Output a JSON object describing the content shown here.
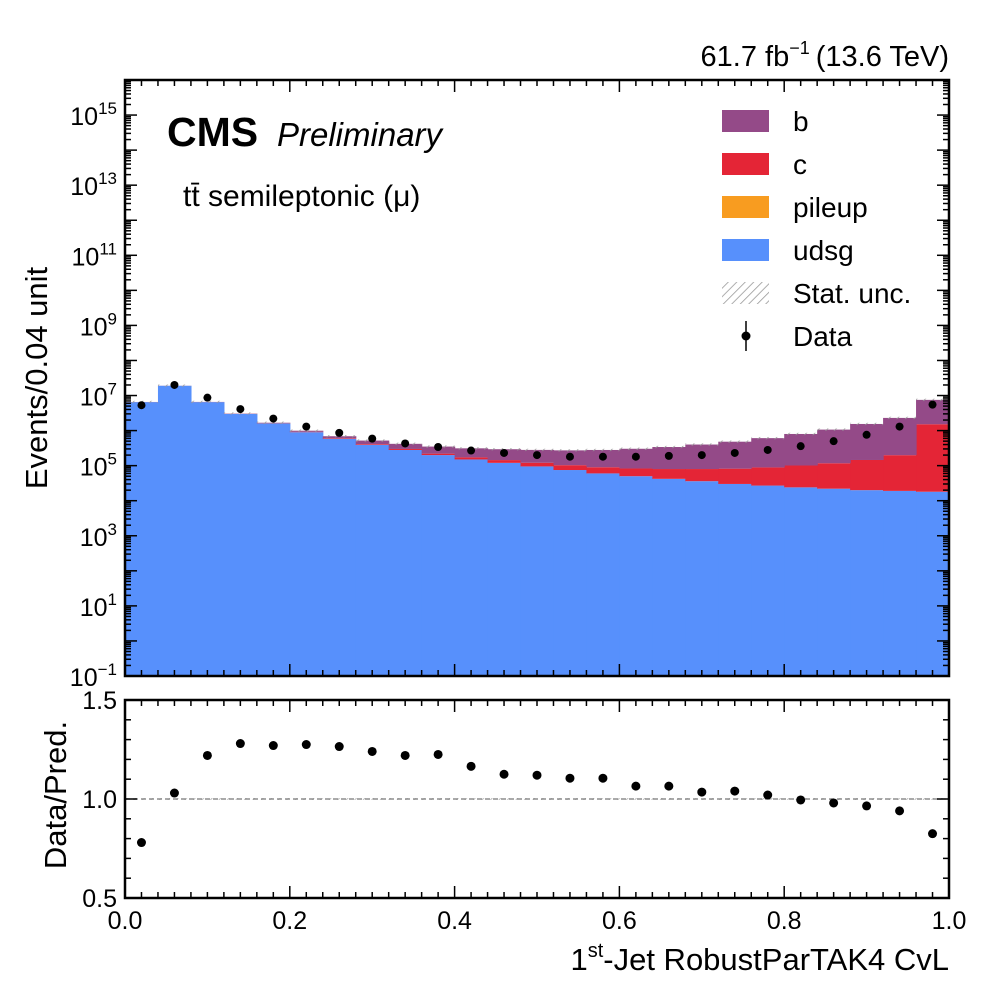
{
  "header": {
    "lumi_value": "61.7 fb",
    "lumi_exponent": "−1",
    "energy": "(13.6 TeV)",
    "experiment": "CMS",
    "status": "Preliminary",
    "channel": "tt̄ semileptonic (μ)"
  },
  "colors": {
    "b": "#944a88",
    "c": "#e42536",
    "pileup": "#f89c20",
    "udsg": "#5790fc",
    "data": "#000000",
    "stat_unc": "#9a9a9a",
    "ref_line": "#777777"
  },
  "legend": {
    "entries": [
      {
        "label": "b",
        "kind": "fill",
        "color_key": "b"
      },
      {
        "label": "c",
        "kind": "fill",
        "color_key": "c"
      },
      {
        "label": "pileup",
        "kind": "fill",
        "color_key": "pileup"
      },
      {
        "label": "udsg",
        "kind": "fill",
        "color_key": "udsg"
      },
      {
        "label": "Stat. unc.",
        "kind": "hatch",
        "color_key": "stat_unc"
      },
      {
        "label": "Data",
        "kind": "marker",
        "color_key": "data"
      }
    ]
  },
  "chart_data": {
    "type": "bar",
    "stacked": true,
    "bin_width": 0.04,
    "xlim": [
      0,
      1.0
    ],
    "xlabel_main": "-Jet RobustParTAK4 CvL",
    "xlabel_prefix": "1",
    "xlabel_sup": "st",
    "top_panel": {
      "ylabel": "Events/0.04 unit",
      "yscale": "log",
      "ylim": [
        0.1,
        1e+16
      ],
      "y_tick_labels": [
        {
          "base": "10",
          "exp": "−1",
          "value": 0.1
        },
        {
          "base": "10",
          "exp": "1",
          "value": 10
        },
        {
          "base": "10",
          "exp": "3",
          "value": 1000
        },
        {
          "base": "10",
          "exp": "5",
          "value": 100000
        },
        {
          "base": "10",
          "exp": "7",
          "value": 10000000
        },
        {
          "base": "10",
          "exp": "9",
          "value": 1000000000
        },
        {
          "base": "10",
          "exp": "11",
          "value": 100000000000
        },
        {
          "base": "10",
          "exp": "13",
          "value": 10000000000000
        },
        {
          "base": "10",
          "exp": "15",
          "value": 1000000000000000
        }
      ],
      "series": [
        {
          "name": "udsg",
          "color_key": "udsg",
          "values": [
            6500000.0,
            19000000.0,
            6500000.0,
            3000000.0,
            1600000.0,
            900000.0,
            580000.0,
            390000.0,
            280000.0,
            200000.0,
            150000.0,
            120000.0,
            95000.0,
            75000.0,
            60000.0,
            50000.0,
            42000.0,
            36000.0,
            30000.0,
            27000.0,
            24000.0,
            22000.0,
            20000.0,
            19000.0,
            18000.0
          ]
        },
        {
          "name": "pileup",
          "color_key": "pileup",
          "values": [
            2000.0,
            3000.0,
            1500.0,
            800.0,
            500.0,
            300.0,
            200.0,
            150.0,
            120.0,
            100.0,
            90.0,
            80.0,
            70.0,
            60.0,
            55.0,
            50.0,
            45.0,
            42.0,
            40.0,
            38.0,
            36.0,
            35.0,
            34.0,
            33.0,
            32.0
          ]
        },
        {
          "name": "c",
          "color_key": "c",
          "values": [
            30000.0,
            50000.0,
            40000.0,
            30000.0,
            25000.0,
            22000.0,
            20000.0,
            19000.0,
            19000.0,
            20000.0,
            22000.0,
            24000.0,
            26000.0,
            28000.0,
            30000.0,
            33000.0,
            38000.0,
            44000.0,
            52000.0,
            62000.0,
            77000.0,
            95000.0,
            125000.0,
            180000.0,
            1500000.0
          ]
        },
        {
          "name": "b",
          "color_key": "b",
          "values": [
            20000.0,
            30000.0,
            30000.0,
            40000.0,
            50000.0,
            70000.0,
            90000.0,
            110000.0,
            120000.0,
            130000.0,
            140000.0,
            150000.0,
            160000.0,
            170000.0,
            190000.0,
            220000.0,
            260000.0,
            320000.0,
            400000.0,
            520000.0,
            700000.0,
            950000.0,
            1400000.0,
            2100000.0,
            6000000.0
          ]
        }
      ],
      "data": {
        "name": "Data",
        "x": [
          0.02,
          0.06,
          0.1,
          0.14,
          0.18,
          0.22,
          0.26,
          0.3,
          0.34,
          0.38,
          0.42,
          0.46,
          0.5,
          0.54,
          0.58,
          0.62,
          0.66,
          0.7,
          0.74,
          0.78,
          0.82,
          0.86,
          0.9,
          0.94,
          0.98
        ],
        "y": [
          5300000.0,
          20000000.0,
          8700000.0,
          4100000.0,
          2200000.0,
          1300000.0,
          860000.0,
          590000.0,
          430000.0,
          340000.0,
          270000.0,
          230000.0,
          200000.0,
          180000.0,
          180000.0,
          180000.0,
          190000.0,
          200000.0,
          230000.0,
          280000.0,
          360000.0,
          500000.0,
          760000.0,
          1300000.0,
          5500000.0
        ]
      }
    },
    "ratio_panel": {
      "ylabel": "Data/Pred.",
      "ylim": [
        0.5,
        1.5
      ],
      "y_tick_labels": [
        "0.5",
        "1.0",
        "1.5"
      ],
      "y_tick_values": [
        0.5,
        1.0,
        1.5
      ],
      "x_tick_labels": [
        "0.0",
        "0.2",
        "0.4",
        "0.6",
        "0.8",
        "1.0"
      ],
      "x_tick_values": [
        0.0,
        0.2,
        0.4,
        0.6,
        0.8,
        1.0
      ],
      "reference": 1.0,
      "x": [
        0.02,
        0.06,
        0.1,
        0.14,
        0.18,
        0.22,
        0.26,
        0.3,
        0.34,
        0.38,
        0.42,
        0.46,
        0.5,
        0.54,
        0.58,
        0.62,
        0.66,
        0.7,
        0.74,
        0.78,
        0.82,
        0.86,
        0.9,
        0.94,
        0.98
      ],
      "y": [
        0.78,
        1.03,
        1.22,
        1.28,
        1.27,
        1.275,
        1.265,
        1.24,
        1.22,
        1.225,
        1.165,
        1.125,
        1.12,
        1.105,
        1.105,
        1.065,
        1.065,
        1.035,
        1.04,
        1.02,
        0.995,
        0.98,
        0.965,
        0.94,
        0.825
      ]
    }
  }
}
